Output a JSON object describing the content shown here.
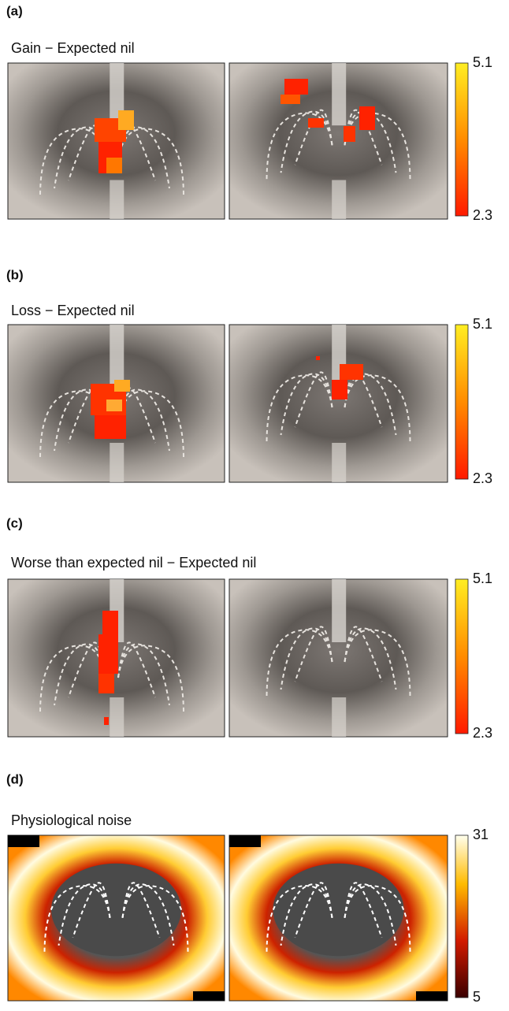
{
  "panels": [
    {
      "label": "(a)",
      "title": "Gain − Expected nil",
      "colorbar": {
        "max": 5.1,
        "min": 2.3
      }
    },
    {
      "label": "(b)",
      "title": "Loss − Expected nil",
      "colorbar": {
        "max": 5.1,
        "min": 2.3
      }
    },
    {
      "label": "(c)",
      "title": "Worse than expected nil − Expected nil",
      "colorbar": {
        "max": 5.1,
        "min": 2.3
      }
    },
    {
      "label": "(d)",
      "title": "Physiological noise",
      "colorbar": {
        "max": 31,
        "min": 5
      }
    }
  ]
}
